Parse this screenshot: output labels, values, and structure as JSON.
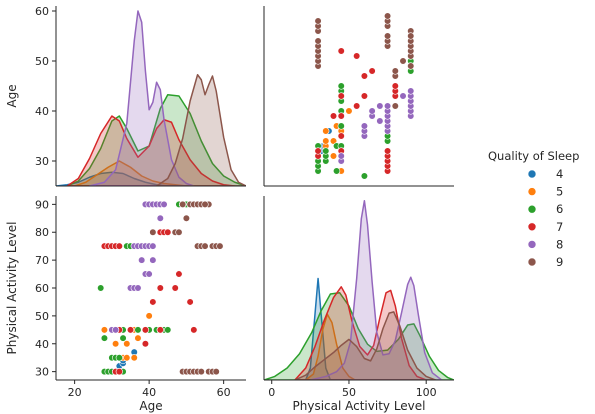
{
  "chart_data": {
    "type": "pairplot",
    "variables": [
      "Age",
      "Physical Activity Level"
    ],
    "axis_labels": {
      "x": [
        "Age",
        "Physical Activity Level"
      ],
      "y": [
        "Age",
        "Physical Activity Level"
      ]
    },
    "axis_ranges": {
      "Age": [
        15,
        66
      ],
      "Physical Activity Level": [
        -5,
        118
      ],
      "age_row_y": [
        25,
        61
      ],
      "pal_row_y": [
        27,
        93
      ]
    },
    "ticks": {
      "age_bottom": [
        "20",
        "40",
        "60"
      ],
      "pal_bottom": [
        "0",
        "50",
        "100"
      ],
      "age_left": [
        "30",
        "40",
        "50",
        "60"
      ],
      "pal_left": [
        "30",
        "40",
        "50",
        "60",
        "70",
        "80",
        "90"
      ]
    },
    "hue": {
      "title": "Quality of Sleep",
      "levels": [
        {
          "label": "4",
          "color": "#1f77b4"
        },
        {
          "label": "5",
          "color": "#ff7f0e"
        },
        {
          "label": "6",
          "color": "#2ca02c"
        },
        {
          "label": "7",
          "color": "#d62728"
        },
        {
          "label": "8",
          "color": "#9467bd"
        },
        {
          "label": "9",
          "color": "#8c564b"
        }
      ]
    },
    "kde_age": [
      {
        "level": "4",
        "points": [
          [
            15,
            0
          ],
          [
            18,
            0.1
          ],
          [
            21,
            0.3
          ],
          [
            24,
            0.7
          ],
          [
            27,
            1.0
          ],
          [
            30,
            1.1
          ],
          [
            33,
            1.0
          ],
          [
            36,
            0.6
          ],
          [
            39,
            0.3
          ],
          [
            42,
            0.1
          ],
          [
            45,
            0
          ]
        ]
      },
      {
        "level": "5",
        "points": [
          [
            20,
            0
          ],
          [
            23,
            0.3
          ],
          [
            26,
            0.9
          ],
          [
            29,
            1.5
          ],
          [
            32,
            2.0
          ],
          [
            35,
            1.5
          ],
          [
            38,
            0.8
          ],
          [
            41,
            0.4
          ],
          [
            44,
            0.2
          ],
          [
            47,
            0.1
          ],
          [
            50,
            0
          ]
        ]
      },
      {
        "level": "6",
        "points": [
          [
            18,
            0
          ],
          [
            21,
            0.4
          ],
          [
            24,
            1.4
          ],
          [
            27,
            3.0
          ],
          [
            30,
            5.2
          ],
          [
            32,
            5.6
          ],
          [
            34,
            4.6
          ],
          [
            37,
            2.8
          ],
          [
            40,
            3.2
          ],
          [
            43,
            6.2
          ],
          [
            45,
            7.3
          ],
          [
            48,
            7.2
          ],
          [
            51,
            5.8
          ],
          [
            54,
            3.6
          ],
          [
            57,
            1.8
          ],
          [
            60,
            0.8
          ],
          [
            63,
            0.3
          ],
          [
            66,
            0
          ]
        ]
      },
      {
        "level": "7",
        "points": [
          [
            18,
            0
          ],
          [
            21,
            0.6
          ],
          [
            24,
            2.2
          ],
          [
            27,
            4.2
          ],
          [
            30,
            5.6
          ],
          [
            32,
            5.2
          ],
          [
            34,
            3.8
          ],
          [
            37,
            2.3
          ],
          [
            40,
            3.2
          ],
          [
            42,
            4.6
          ],
          [
            44,
            5.3
          ],
          [
            46,
            5.1
          ],
          [
            48,
            3.7
          ],
          [
            51,
            2.1
          ],
          [
            54,
            1.0
          ],
          [
            57,
            0.4
          ],
          [
            60,
            0.1
          ],
          [
            63,
            0
          ]
        ]
      },
      {
        "level": "8",
        "points": [
          [
            24,
            0
          ],
          [
            28,
            0.3
          ],
          [
            31,
            1.3
          ],
          [
            34,
            5.0
          ],
          [
            36,
            11.6
          ],
          [
            37,
            14.0
          ],
          [
            38,
            13.1
          ],
          [
            39,
            9.2
          ],
          [
            40,
            6.1
          ],
          [
            41,
            6.7
          ],
          [
            42,
            8.3
          ],
          [
            43,
            7.7
          ],
          [
            44,
            5.3
          ],
          [
            46,
            2.1
          ],
          [
            48,
            0.7
          ],
          [
            50,
            0.2
          ],
          [
            52,
            0
          ]
        ]
      },
      {
        "level": "9",
        "points": [
          [
            42,
            0
          ],
          [
            45,
            0.6
          ],
          [
            47,
            1.8
          ],
          [
            49,
            3.8
          ],
          [
            51,
            6.8
          ],
          [
            53,
            8.9
          ],
          [
            54,
            8.5
          ],
          [
            55,
            7.3
          ],
          [
            56,
            8.1
          ],
          [
            57,
            8.8
          ],
          [
            58,
            7.6
          ],
          [
            60,
            3.9
          ],
          [
            62,
            1.3
          ],
          [
            64,
            0.3
          ],
          [
            66,
            0
          ]
        ]
      }
    ],
    "kde_pal": [
      {
        "level": "4",
        "points": [
          [
            22,
            0
          ],
          [
            25,
            1.0
          ],
          [
            28,
            5.5
          ],
          [
            30,
            8.5
          ],
          [
            32,
            5.5
          ],
          [
            35,
            1.0
          ],
          [
            38,
            0
          ]
        ]
      },
      {
        "level": "5",
        "points": [
          [
            22,
            0
          ],
          [
            27,
            0.5
          ],
          [
            30,
            2.0
          ],
          [
            33,
            4.2
          ],
          [
            36,
            5.5
          ],
          [
            39,
            4.8
          ],
          [
            42,
            3.0
          ],
          [
            46,
            1.0
          ],
          [
            50,
            0.3
          ],
          [
            54,
            0
          ]
        ]
      },
      {
        "level": "6",
        "points": [
          [
            -5,
            0
          ],
          [
            2,
            0.3
          ],
          [
            10,
            1.0
          ],
          [
            18,
            2.2
          ],
          [
            26,
            4.0
          ],
          [
            32,
            5.8
          ],
          [
            38,
            7.2
          ],
          [
            44,
            7.3
          ],
          [
            50,
            6.2
          ],
          [
            56,
            4.3
          ],
          [
            62,
            3.0
          ],
          [
            68,
            2.4
          ],
          [
            75,
            2.5
          ],
          [
            82,
            3.4
          ],
          [
            88,
            4.6
          ],
          [
            92,
            4.7
          ],
          [
            96,
            3.7
          ],
          [
            102,
            2.0
          ],
          [
            108,
            0.8
          ],
          [
            114,
            0.2
          ],
          [
            118,
            0
          ]
        ]
      },
      {
        "level": "7",
        "points": [
          [
            15,
            0
          ],
          [
            22,
            1.0
          ],
          [
            28,
            2.8
          ],
          [
            34,
            5.0
          ],
          [
            40,
            6.9
          ],
          [
            45,
            7.8
          ],
          [
            48,
            7.1
          ],
          [
            52,
            4.9
          ],
          [
            57,
            2.8
          ],
          [
            62,
            2.1
          ],
          [
            66,
            2.9
          ],
          [
            70,
            5.2
          ],
          [
            74,
            7.3
          ],
          [
            77,
            7.5
          ],
          [
            80,
            6.2
          ],
          [
            84,
            3.5
          ],
          [
            89,
            1.2
          ],
          [
            94,
            0.3
          ],
          [
            100,
            0
          ]
        ]
      },
      {
        "level": "8",
        "points": [
          [
            25,
            0
          ],
          [
            35,
            0.3
          ],
          [
            42,
            0.7
          ],
          [
            47,
            1.4
          ],
          [
            51,
            3.2
          ],
          [
            55,
            8.5
          ],
          [
            58,
            13.5
          ],
          [
            60,
            15.0
          ],
          [
            62,
            13.0
          ],
          [
            65,
            8.2
          ],
          [
            68,
            4.0
          ],
          [
            72,
            2.1
          ],
          [
            76,
            2.2
          ],
          [
            80,
            3.3
          ],
          [
            84,
            5.6
          ],
          [
            88,
            8.0
          ],
          [
            90,
            8.6
          ],
          [
            92,
            7.9
          ],
          [
            95,
            5.4
          ],
          [
            99,
            2.3
          ],
          [
            104,
            0.6
          ],
          [
            110,
            0
          ]
        ]
      },
      {
        "level": "9",
        "points": [
          [
            15,
            0
          ],
          [
            22,
            0.4
          ],
          [
            28,
            1.1
          ],
          [
            34,
            1.7
          ],
          [
            40,
            2.3
          ],
          [
            45,
            2.9
          ],
          [
            50,
            3.4
          ],
          [
            55,
            2.8
          ],
          [
            60,
            1.8
          ],
          [
            64,
            1.6
          ],
          [
            68,
            2.6
          ],
          [
            72,
            4.3
          ],
          [
            76,
            5.6
          ],
          [
            79,
            5.7
          ],
          [
            83,
            4.5
          ],
          [
            88,
            2.5
          ],
          [
            94,
            1.0
          ],
          [
            100,
            0.3
          ],
          [
            106,
            0
          ]
        ]
      }
    ],
    "points": [
      {
        "level": "4",
        "pal": [
          30,
          30,
          32,
          33,
          34,
          35,
          37
        ],
        "age": [
          28,
          29,
          32,
          33,
          33,
          34,
          36
        ]
      },
      {
        "level": "5",
        "pal": [
          30,
          30,
          30,
          35,
          35,
          35,
          40,
          40,
          42,
          45,
          45,
          50
        ],
        "age": [
          28,
          29,
          29,
          33,
          34,
          36,
          31,
          34,
          37,
          28,
          36,
          40
        ]
      },
      {
        "level": "6",
        "pal": [
          30,
          30,
          30,
          30,
          30,
          30,
          35,
          35,
          35,
          42,
          42,
          45,
          45,
          45,
          45,
          45,
          45,
          45,
          60,
          75,
          75,
          90,
          90,
          90,
          90,
          90,
          90,
          90,
          90
        ],
        "age": [
          28,
          29,
          30,
          31,
          32,
          33,
          30,
          31,
          32,
          28,
          33,
          33,
          37,
          40,
          42,
          43,
          44,
          45,
          27,
          34,
          35,
          48,
          49,
          49,
          50,
          50,
          51,
          51,
          49
        ]
      },
      {
        "level": "7",
        "pal": [
          30,
          30,
          30,
          40,
          45,
          45,
          45,
          45,
          45,
          55,
          55,
          60,
          60,
          65,
          75,
          75,
          75,
          75,
          75,
          75,
          75,
          75,
          80,
          80,
          80
        ],
        "age": [
          31,
          31,
          32,
          39,
          32,
          35,
          39,
          43,
          52,
          41,
          51,
          43,
          47,
          48,
          28,
          29,
          30,
          31,
          32,
          37,
          39,
          40,
          43,
          44,
          45
        ]
      },
      {
        "level": "8",
        "pal": [
          45,
          45,
          60,
          60,
          60,
          65,
          65,
          70,
          70,
          75,
          75,
          75,
          75,
          75,
          75,
          85,
          90,
          90,
          90,
          90,
          90,
          90
        ],
        "age": [
          30,
          31,
          35,
          36,
          37,
          39,
          40,
          38,
          41,
          36,
          37,
          38,
          39,
          40,
          41,
          43,
          39,
          40,
          41,
          42,
          43,
          44
        ]
      },
      {
        "level": "9",
        "pal": [
          30,
          30,
          30,
          30,
          30,
          30,
          30,
          30,
          30,
          75,
          75,
          75,
          75,
          75,
          75,
          80,
          80,
          80,
          85,
          90,
          90,
          90,
          90,
          90,
          90,
          90
        ],
        "age": [
          49,
          50,
          51,
          52,
          53,
          54,
          56,
          57,
          58,
          53,
          54,
          55,
          57,
          58,
          59,
          41,
          47,
          48,
          50,
          49,
          56,
          51,
          52,
          53,
          54,
          55
        ]
      }
    ]
  }
}
